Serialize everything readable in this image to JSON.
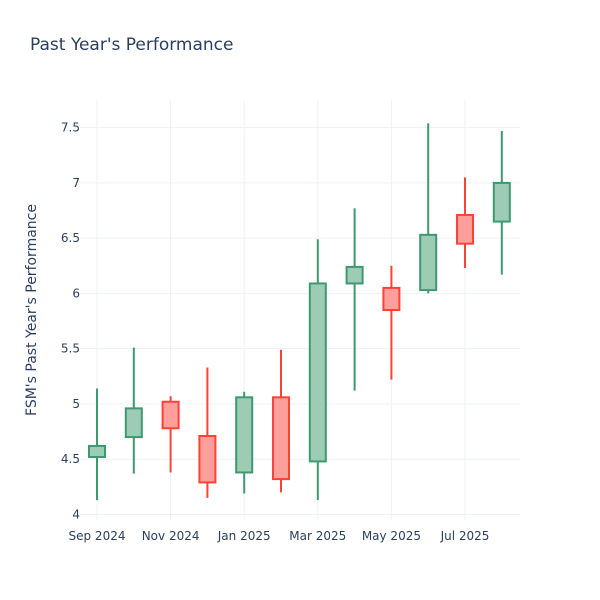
{
  "chart_data": {
    "type": "candlestick",
    "title": "Past Year's Performance",
    "xlabel": "",
    "ylabel": "FSM's Past Year's Performance",
    "ylim": [
      3.95,
      7.75
    ],
    "y_ticks": [
      4,
      4.5,
      5,
      5.5,
      6,
      6.5,
      7,
      7.5
    ],
    "y_tick_labels": [
      "4",
      "4.5",
      "5",
      "5.5",
      "6",
      "6.5",
      "7",
      "7.5"
    ],
    "x_tick_labels": [
      "Sep 2024",
      "Nov 2024",
      "Jan 2025",
      "Mar 2025",
      "May 2025",
      "Jul 2025"
    ],
    "x_tick_candle_index": [
      0,
      2,
      4,
      6,
      8,
      10
    ],
    "grid": true,
    "legend": "none",
    "colors": {
      "increasing_line": "#3d9970",
      "increasing_fill": "#9ecbb4",
      "decreasing_line": "#ff4136",
      "decreasing_fill": "#ff9f9b",
      "grid": "#eef1f6",
      "text": "#2a3f5f"
    },
    "candles": [
      {
        "period": "Sep 2024",
        "open": 4.52,
        "high": 5.14,
        "low": 4.13,
        "close": 4.62
      },
      {
        "period": "Oct 2024",
        "open": 4.7,
        "high": 5.51,
        "low": 4.37,
        "close": 4.96
      },
      {
        "period": "Nov 2024",
        "open": 5.02,
        "high": 5.07,
        "low": 4.38,
        "close": 4.78
      },
      {
        "period": "Dec 2024",
        "open": 4.71,
        "high": 5.33,
        "low": 4.15,
        "close": 4.29
      },
      {
        "period": "Jan 2025",
        "open": 4.38,
        "high": 5.11,
        "low": 4.19,
        "close": 5.06
      },
      {
        "period": "Feb 2025",
        "open": 5.06,
        "high": 5.49,
        "low": 4.2,
        "close": 4.32
      },
      {
        "period": "Mar 2025",
        "open": 4.48,
        "high": 6.49,
        "low": 4.13,
        "close": 6.09
      },
      {
        "period": "Apr 2025",
        "open": 6.09,
        "high": 6.77,
        "low": 5.12,
        "close": 6.24
      },
      {
        "period": "May 2025",
        "open": 6.05,
        "high": 6.25,
        "low": 5.22,
        "close": 5.85
      },
      {
        "period": "Jun 2025",
        "open": 6.03,
        "high": 7.54,
        "low": 6.0,
        "close": 6.53
      },
      {
        "period": "Jul 2025",
        "open": 6.71,
        "high": 7.05,
        "low": 6.23,
        "close": 6.45
      },
      {
        "period": "Aug 2025",
        "open": 6.65,
        "high": 7.47,
        "low": 6.17,
        "close": 7.0
      }
    ]
  }
}
